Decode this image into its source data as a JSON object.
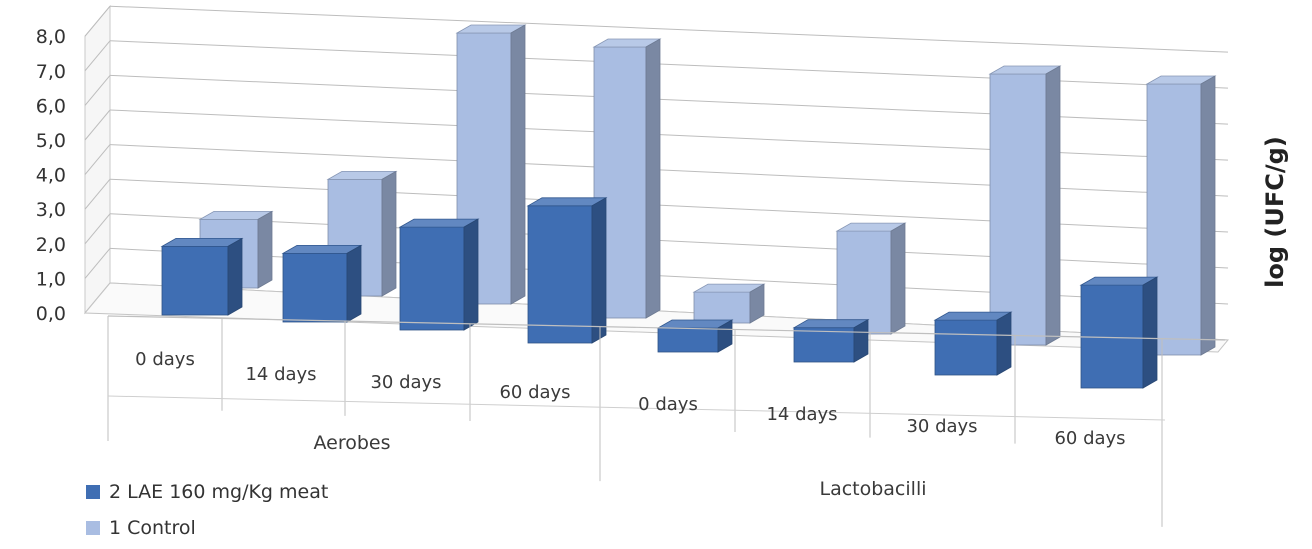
{
  "chart_data": {
    "type": "bar",
    "style": "3d-clustered-bar",
    "groups": [
      {
        "name": "Aerobes",
        "categories": [
          "0 days",
          "14 days",
          "30 days",
          "60 days"
        ]
      },
      {
        "name": "Lactobacilli",
        "categories": [
          "0 days",
          "14 days",
          "30 days",
          "60 days"
        ]
      }
    ],
    "series": [
      {
        "name": "2 LAE 160 mg/Kg meat",
        "color": "#3f6eb3",
        "values": [
          2.0,
          2.0,
          3.0,
          4.0,
          0.7,
          1.0,
          1.6,
          3.0
        ]
      },
      {
        "name": "1 Control",
        "color": "#a9bde2",
        "values": [
          2.0,
          3.4,
          7.9,
          7.9,
          0.9,
          3.0,
          7.9,
          7.9
        ]
      }
    ],
    "yticks": [
      "0,0",
      "1,0",
      "2,0",
      "3,0",
      "4,0",
      "5,0",
      "6,0",
      "7,0",
      "8,0"
    ],
    "ylim": [
      0,
      8
    ],
    "ylabel": "log (UFC/g)",
    "legend_position": "bottom-left",
    "grid": true
  }
}
